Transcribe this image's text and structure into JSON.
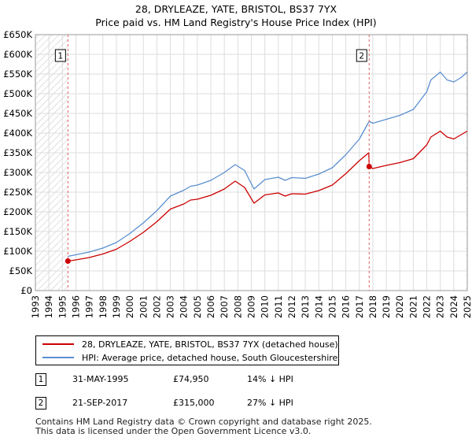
{
  "title_line1": "28, DRYLEAZE, YATE, BRISTOL, BS37 7YX",
  "title_line2": "Price paid vs. HM Land Registry's House Price Index (HPI)",
  "colors": {
    "price": "#cc0000",
    "hpi": "#5b8fd0",
    "grid": "#dddddd",
    "hatch": "#cccccc",
    "marker_line": "#e06060"
  },
  "chart_data": {
    "type": "line",
    "title": "Price paid vs. HM Land Registry's House Price Index (HPI)",
    "xlim": [
      1993,
      2025
    ],
    "ylim": [
      0,
      650000
    ],
    "x_ticks": [
      1993,
      1994,
      1995,
      1996,
      1997,
      1998,
      1999,
      2000,
      2001,
      2002,
      2003,
      2004,
      2005,
      2006,
      2007,
      2008,
      2009,
      2010,
      2011,
      2012,
      2013,
      2014,
      2015,
      2016,
      2017,
      2018,
      2019,
      2020,
      2021,
      2022,
      2023,
      2024,
      2025
    ],
    "y_ticks": [
      0,
      50000,
      100000,
      150000,
      200000,
      250000,
      300000,
      350000,
      400000,
      450000,
      500000,
      550000,
      600000,
      650000
    ],
    "y_tick_labels": [
      "£0",
      "£50K",
      "£100K",
      "£150K",
      "£200K",
      "£250K",
      "£300K",
      "£350K",
      "£400K",
      "£450K",
      "£500K",
      "£550K",
      "£600K",
      "£650K"
    ],
    "grid": true,
    "series": [
      {
        "name": "28, DRYLEAZE, YATE, BRISTOL, BS37 7YX (detached house)",
        "color": "#cc0000",
        "x": [
          1995.41,
          1996,
          1997,
          1998,
          1999,
          2000,
          2001,
          2002,
          2003,
          2004,
          2004.5,
          2005,
          2006,
          2007,
          2007.8,
          2008.5,
          2009.2,
          2010,
          2011,
          2011.5,
          2012,
          2013,
          2014,
          2015,
          2016,
          2017,
          2017.7,
          2017.73,
          2018,
          2019,
          2020,
          2021,
          2022,
          2022.3,
          2023,
          2023.5,
          2024,
          2024.5,
          2025
        ],
        "y": [
          74950,
          78000,
          84000,
          93000,
          105000,
          125000,
          148000,
          175000,
          207000,
          220000,
          230000,
          232000,
          242000,
          258000,
          278000,
          262000,
          222000,
          243000,
          248000,
          240000,
          246000,
          245000,
          254000,
          268000,
          297000,
          330000,
          350000,
          315000,
          310000,
          318000,
          325000,
          335000,
          370000,
          390000,
          405000,
          390000,
          385000,
          395000,
          405000
        ]
      },
      {
        "name": "HPI: Average price, detached house, South Gloucestershire",
        "color": "#5b8fd0",
        "x": [
          1995.41,
          1996,
          1997,
          1998,
          1999,
          2000,
          2001,
          2002,
          2003,
          2004,
          2004.5,
          2005,
          2006,
          2007,
          2007.8,
          2008.5,
          2009.2,
          2010,
          2011,
          2011.5,
          2012,
          2013,
          2014,
          2015,
          2016,
          2017,
          2017.73,
          2018,
          2019,
          2020,
          2021,
          2022,
          2022.3,
          2023,
          2023.5,
          2024,
          2024.5,
          2025
        ],
        "y": [
          87000,
          91000,
          98000,
          108000,
          122000,
          145000,
          172000,
          203000,
          240000,
          255000,
          265000,
          268000,
          280000,
          300000,
          320000,
          305000,
          258000,
          282000,
          288000,
          280000,
          287000,
          285000,
          296000,
          312000,
          345000,
          385000,
          430000,
          425000,
          435000,
          445000,
          460000,
          505000,
          535000,
          555000,
          535000,
          530000,
          540000,
          555000
        ]
      }
    ],
    "annotations": [
      {
        "label": "1",
        "x": 1995.41,
        "y": 74950
      },
      {
        "label": "2",
        "x": 2017.73,
        "y": 315000
      }
    ],
    "hatched_regions": [
      {
        "from": 1993,
        "to": 1995.41
      },
      {
        "from": 2024.9,
        "to": 2025
      }
    ]
  },
  "legend": {
    "price_label": "28, DRYLEAZE, YATE, BRISTOL, BS37 7YX (detached house)",
    "hpi_label": "HPI: Average price, detached house, South Gloucestershire"
  },
  "transactions": [
    {
      "num": "1",
      "date": "31-MAY-1995",
      "price": "£74,950",
      "hpi": "14% ↓ HPI"
    },
    {
      "num": "2",
      "date": "21-SEP-2017",
      "price": "£315,000",
      "hpi": "27% ↓ HPI"
    }
  ],
  "footer_line1": "Contains HM Land Registry data © Crown copyright and database right 2025.",
  "footer_line2": "This data is licensed under the Open Government Licence v3.0."
}
